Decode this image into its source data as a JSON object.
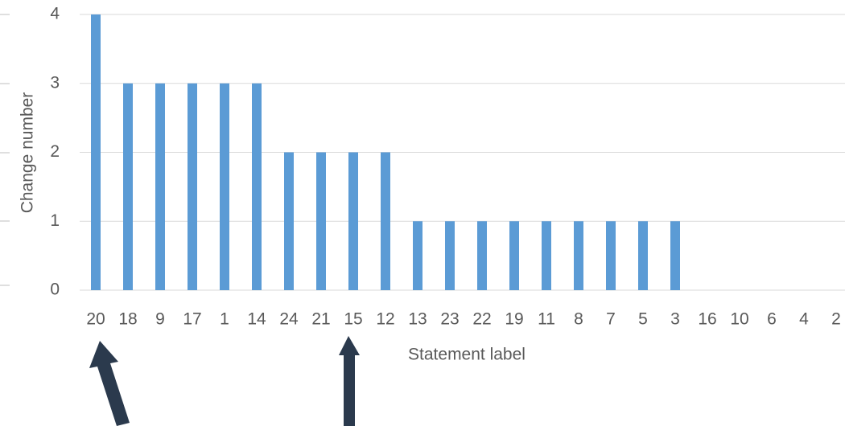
{
  "chart_data": {
    "type": "bar",
    "x_label": "Statement label",
    "y_label": "Change number",
    "categories": [
      "20",
      "18",
      "9",
      "17",
      "1",
      "14",
      "24",
      "21",
      "15",
      "12",
      "13",
      "23",
      "22",
      "19",
      "11",
      "8",
      "7",
      "5",
      "3",
      "16",
      "10",
      "6",
      "4",
      "2"
    ],
    "values": [
      4,
      3,
      3,
      3,
      3,
      3,
      2,
      2,
      2,
      2,
      1,
      1,
      1,
      1,
      1,
      1,
      1,
      1,
      1,
      0,
      0,
      0,
      0,
      0
    ],
    "color": "#5b9bd5",
    "ylim": [
      0,
      4
    ],
    "yticks": [
      0,
      1,
      2,
      3,
      4
    ],
    "grid": true
  }
}
